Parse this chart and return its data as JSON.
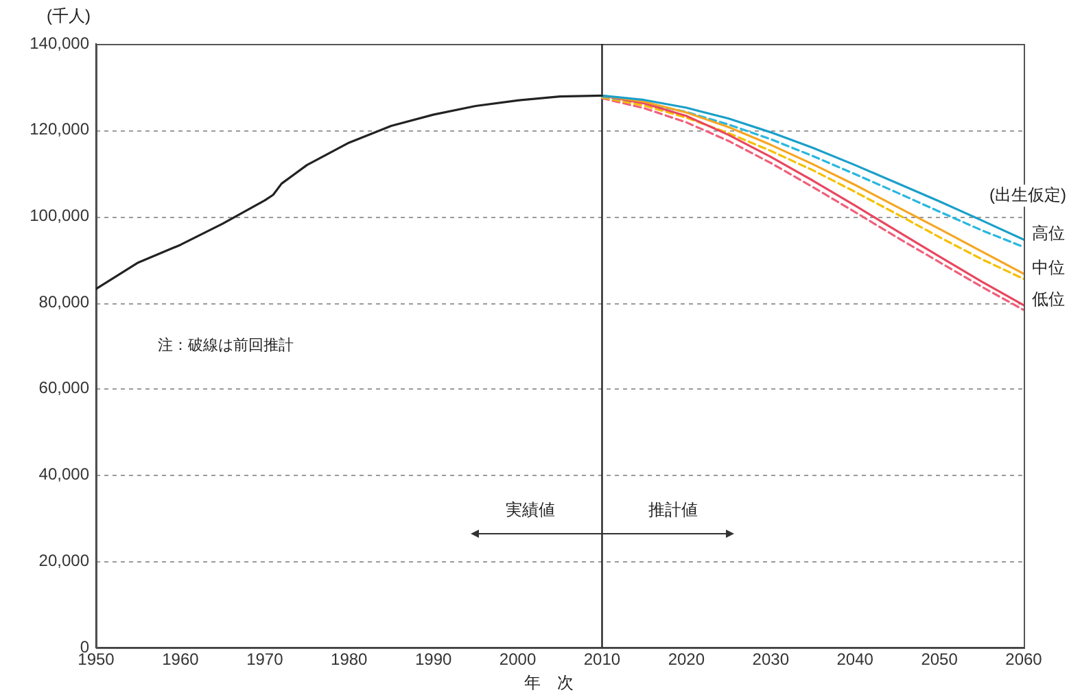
{
  "chart_data": {
    "type": "line",
    "ylabel": "(千人)",
    "xlabel": "年　次",
    "legend_title": "(出生仮定)",
    "xlim": [
      1950,
      2060
    ],
    "xticks": [
      1950,
      1960,
      1970,
      1980,
      1990,
      2000,
      2010,
      2020,
      2030,
      2040,
      2050,
      2060
    ],
    "ylim": [
      0,
      140000
    ],
    "yticks": [
      {
        "value": 0,
        "label": "0"
      },
      {
        "value": 20000,
        "label": "20,000"
      },
      {
        "value": 40000,
        "label": "40,000"
      },
      {
        "value": 60000,
        "label": "60,000"
      },
      {
        "value": 80000,
        "label": "80,000"
      },
      {
        "value": 100000,
        "label": "100,000"
      },
      {
        "value": 120000,
        "label": "120,000"
      },
      {
        "value": 140000,
        "label": "140,000"
      }
    ],
    "grid": "y",
    "legend": false,
    "marker": "none",
    "ref_lines": [
      {
        "axis": "x",
        "value": 2010,
        "color": "#222222",
        "line_style": "solid"
      }
    ],
    "annotations": [
      "注：破線は前回推計",
      "実績値",
      "推計値"
    ],
    "series": [
      {
        "color": "#222222",
        "line_style": "solid",
        "x": [
          1950,
          1955,
          1960,
          1965,
          1970,
          1971,
          1972,
          1975,
          1980,
          1985,
          1990,
          1995,
          2000,
          2005,
          2010
        ],
        "values": [
          83200,
          89300,
          93400,
          98300,
          103700,
          105000,
          107600,
          111900,
          117100,
          121000,
          123600,
          125600,
          126900,
          127800,
          128000
        ]
      },
      {
        "name": "高位",
        "color": "#1a9fc9",
        "line_style": "solid",
        "x": [
          2010,
          2015,
          2020,
          2025,
          2030,
          2035,
          2040,
          2045,
          2050,
          2055,
          2060
        ],
        "values": [
          128000,
          127000,
          125200,
          122700,
          119500,
          115900,
          111900,
          107700,
          103500,
          99100,
          94600
        ]
      },
      {
        "name": "中位",
        "color": "#f5a623",
        "line_style": "solid",
        "x": [
          2010,
          2015,
          2020,
          2025,
          2030,
          2035,
          2040,
          2045,
          2050,
          2055,
          2060
        ],
        "values": [
          128000,
          126600,
          124100,
          120700,
          116600,
          112100,
          107300,
          102200,
          97100,
          91900,
          86700
        ]
      },
      {
        "name": "低位",
        "color": "#e8475f",
        "line_style": "solid",
        "x": [
          2010,
          2015,
          2020,
          2025,
          2030,
          2035,
          2040,
          2045,
          2050,
          2055,
          2060
        ],
        "values": [
          128000,
          126200,
          123300,
          118900,
          113800,
          108300,
          102500,
          96600,
          90700,
          84900,
          79400
        ]
      },
      {
        "color": "#29b6e0",
        "line_style": "dashed",
        "x": [
          2010,
          2015,
          2020,
          2025,
          2030,
          2035,
          2040,
          2045,
          2050,
          2055,
          2060
        ],
        "values": [
          127800,
          126300,
          124200,
          121300,
          117900,
          114000,
          109800,
          105500,
          101100,
          96800,
          92900
        ]
      },
      {
        "color": "#f5c000",
        "line_style": "dashed",
        "x": [
          2010,
          2015,
          2020,
          2025,
          2030,
          2035,
          2040,
          2045,
          2050,
          2055,
          2060
        ],
        "values": [
          127600,
          125700,
          122900,
          119300,
          115200,
          110700,
          105700,
          100500,
          95200,
          90100,
          85500
        ]
      },
      {
        "color": "#f0607a",
        "line_style": "dashed",
        "x": [
          2010,
          2015,
          2020,
          2025,
          2030,
          2035,
          2040,
          2045,
          2050,
          2055,
          2060
        ],
        "values": [
          127400,
          125100,
          121800,
          117500,
          112400,
          106800,
          101000,
          95100,
          89400,
          83700,
          78300
        ]
      }
    ]
  }
}
